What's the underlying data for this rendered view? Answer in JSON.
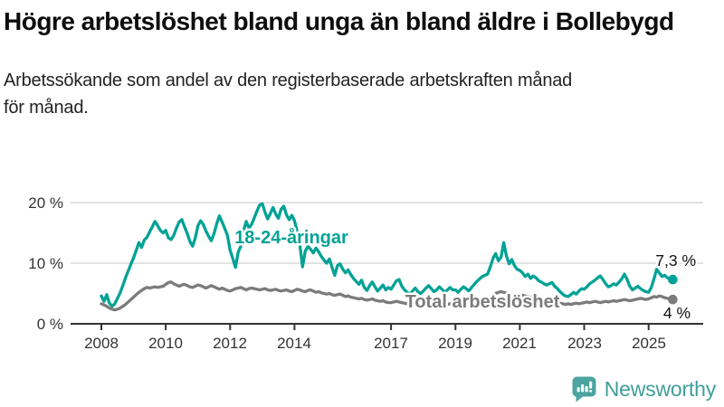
{
  "header": {
    "title": "Högre arbetslöshet bland unga än bland äldre i Bollebygd",
    "subtitle": "Arbetssökande som andel av den registerbaserade arbetskraften månad för månad."
  },
  "footer": {
    "brand": "Newsworthy",
    "logo_icon": "newsworthy-speech-bubble-bar-chart-icon"
  },
  "colors": {
    "youth_line": "#00a296",
    "total_line": "#7b7b7b",
    "axis": "#333333",
    "grid": "#d9d9d9",
    "value_label": "#111111",
    "brand_teal": "#3f9e99",
    "logo_bubble": "#4ba49f"
  },
  "chart_data": {
    "type": "line",
    "unit": "%",
    "grid": "horizontal-only",
    "legend": "inline-labels-on-lines",
    "ylim": [
      0,
      21
    ],
    "y_ticks": [
      "20 %",
      "10 %",
      "0 %"
    ],
    "x_ticks": [
      "2008",
      "2010",
      "2012",
      "2014",
      "2017",
      "2019",
      "2021",
      "2023",
      "2025"
    ],
    "start_year": 2008,
    "points_per_year": 12,
    "series": [
      {
        "name": "18-24-åringar",
        "color": "#00a296",
        "end_label": "7,3 %",
        "end_value": 7.3,
        "values": [
          4.6,
          3.7,
          4.8,
          3.4,
          2.9,
          3.3,
          4.2,
          5.1,
          6.3,
          7.6,
          8.7,
          9.8,
          10.9,
          12.1,
          13.4,
          12.6,
          13.8,
          14.3,
          15.2,
          16.0,
          16.9,
          16.2,
          15.4,
          15.0,
          15.4,
          14.2,
          13.9,
          14.6,
          15.8,
          16.8,
          17.2,
          16.0,
          14.9,
          13.6,
          12.8,
          14.1,
          16.2,
          17.0,
          16.4,
          15.3,
          14.4,
          13.7,
          14.9,
          16.5,
          17.8,
          16.8,
          15.7,
          14.6,
          12.1,
          10.8,
          9.3,
          11.8,
          12.8,
          15.4,
          16.9,
          15.8,
          16.4,
          17.5,
          18.6,
          19.6,
          19.8,
          18.4,
          17.3,
          18.2,
          19.2,
          18.1,
          17.4,
          18.9,
          19.4,
          18.0,
          17.2,
          17.9,
          17.0,
          15.2,
          13.1,
          9.4,
          12.0,
          12.8,
          12.3,
          11.7,
          12.5,
          11.9,
          11.1,
          10.5,
          10.0,
          10.7,
          9.3,
          8.0,
          9.6,
          9.9,
          9.0,
          8.4,
          8.9,
          8.1,
          7.5,
          7.0,
          6.5,
          7.2,
          6.0,
          5.5,
          6.3,
          6.9,
          6.1,
          5.4,
          5.9,
          6.4,
          5.6,
          6.0,
          5.7,
          6.4,
          7.1,
          7.3,
          6.2,
          5.6,
          5.2,
          4.9,
          5.4,
          5.9,
          5.3,
          5.0,
          5.4,
          5.9,
          6.3,
          5.8,
          5.3,
          5.6,
          6.1,
          5.7,
          5.2,
          5.6,
          6.0,
          5.6,
          5.6,
          5.2,
          5.7,
          6.1,
          5.8,
          5.4,
          6.0,
          6.5,
          7.0,
          7.4,
          7.8,
          8.0,
          8.2,
          9.4,
          10.8,
          11.6,
          10.4,
          11.0,
          13.4,
          11.2,
          9.9,
          10.6,
          9.6,
          9.0,
          8.8,
          8.4,
          7.8,
          8.2,
          7.5,
          7.9,
          7.6,
          7.1,
          6.9,
          6.6,
          6.4,
          6.6,
          6.8,
          6.2,
          5.8,
          5.3,
          4.9,
          4.6,
          4.5,
          4.8,
          5.2,
          4.9,
          5.4,
          5.8,
          5.7,
          6.1,
          6.6,
          6.9,
          7.2,
          7.6,
          7.9,
          7.3,
          6.6,
          6.1,
          6.3,
          6.6,
          6.4,
          6.9,
          7.4,
          8.2,
          7.3,
          6.2,
          5.6,
          5.9,
          6.2,
          5.8,
          5.5,
          5.3,
          5.2,
          6.0,
          7.4,
          9.0,
          8.4,
          7.8,
          8.0,
          7.6,
          7.4,
          7.3
        ]
      },
      {
        "name": "Total arbetslöshet",
        "color": "#7b7b7b",
        "end_label": "4 %",
        "end_value": 4.0,
        "values": [
          3.3,
          3.1,
          2.9,
          2.6,
          2.4,
          2.3,
          2.4,
          2.6,
          2.9,
          3.2,
          3.6,
          4.0,
          4.4,
          4.8,
          5.2,
          5.5,
          5.8,
          6.0,
          5.9,
          6.0,
          6.1,
          6.0,
          6.1,
          6.2,
          6.5,
          6.8,
          6.9,
          6.6,
          6.4,
          6.2,
          6.4,
          6.5,
          6.3,
          6.1,
          6.0,
          6.2,
          6.4,
          6.3,
          6.1,
          5.9,
          6.1,
          6.3,
          6.1,
          5.9,
          5.7,
          5.9,
          5.7,
          5.5,
          5.4,
          5.6,
          5.8,
          5.9,
          6.0,
          5.8,
          5.6,
          5.8,
          5.9,
          5.8,
          5.7,
          5.6,
          5.7,
          5.8,
          5.6,
          5.5,
          5.6,
          5.7,
          5.5,
          5.4,
          5.5,
          5.6,
          5.4,
          5.3,
          5.5,
          5.7,
          5.6,
          5.4,
          5.3,
          5.5,
          5.6,
          5.4,
          5.2,
          5.3,
          5.1,
          5.0,
          4.9,
          5.0,
          4.8,
          4.7,
          4.8,
          4.9,
          4.7,
          4.5,
          4.6,
          4.4,
          4.3,
          4.2,
          4.1,
          4.2,
          4.0,
          3.9,
          4.0,
          4.1,
          3.9,
          3.8,
          3.7,
          3.8,
          3.6,
          3.5,
          3.5,
          3.6,
          3.7,
          3.6,
          3.5,
          3.4,
          3.3,
          3.4,
          3.5,
          3.4,
          3.3,
          3.4,
          3.3,
          3.4,
          3.5,
          3.4,
          3.3,
          3.2,
          3.3,
          3.4,
          3.3,
          3.2,
          3.3,
          3.4,
          3.5,
          3.6,
          3.5,
          3.4,
          3.5,
          3.6,
          3.7,
          3.6,
          3.7,
          3.8,
          3.9,
          4.1,
          4.1,
          4.4,
          4.7,
          5.0,
          5.2,
          5.3,
          5.2,
          5.1,
          5.0,
          4.9,
          4.8,
          4.9,
          4.8,
          4.7,
          4.6,
          4.5,
          4.4,
          4.3,
          4.2,
          4.1,
          4.0,
          3.9,
          3.8,
          3.7,
          3.7,
          3.6,
          3.5,
          3.4,
          3.3,
          3.2,
          3.3,
          3.2,
          3.3,
          3.4,
          3.3,
          3.4,
          3.5,
          3.6,
          3.5,
          3.6,
          3.7,
          3.6,
          3.5,
          3.6,
          3.7,
          3.6,
          3.7,
          3.8,
          3.7,
          3.8,
          3.9,
          4.0,
          3.9,
          3.8,
          3.9,
          4.0,
          4.1,
          4.2,
          4.1,
          4.0,
          4.1,
          4.3,
          4.5,
          4.4,
          4.6,
          4.5,
          4.3,
          4.2,
          4.1,
          4.0
        ]
      }
    ]
  }
}
